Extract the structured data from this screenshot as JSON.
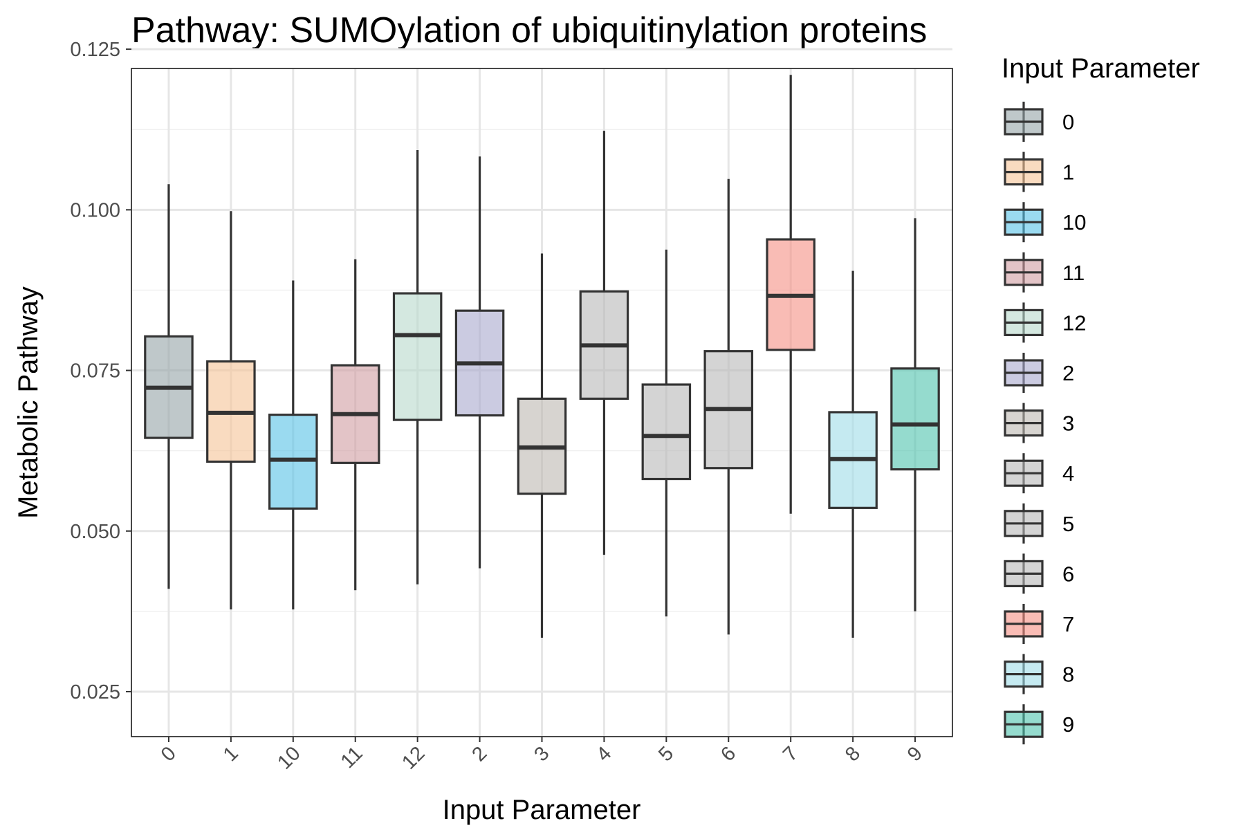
{
  "chart_data": {
    "type": "boxplot",
    "title": "Pathway: SUMOylation of ubiquitinylation proteins",
    "xlabel": "Input Parameter",
    "ylabel": "Metabolic Pathway",
    "ylim": [
      0.018,
      0.122
    ],
    "yticks": [
      0.025,
      0.05,
      0.075,
      0.1,
      0.125
    ],
    "ytick_labels": [
      "0.025",
      "0.050",
      "0.075",
      "0.100",
      "0.125"
    ],
    "grid": true,
    "legend": {
      "title": "Input Parameter",
      "placement": "right"
    },
    "categories": [
      "0",
      "1",
      "10",
      "11",
      "12",
      "2",
      "3",
      "4",
      "5",
      "6",
      "7",
      "8",
      "9"
    ],
    "boxes": [
      {
        "label": "0",
        "whisker_low": 0.041,
        "q1": 0.0645,
        "median": 0.0723,
        "q3": 0.0803,
        "whisker_high": 0.104,
        "color": "#95A3A6"
      },
      {
        "label": "1",
        "whisker_low": 0.0378,
        "q1": 0.0608,
        "median": 0.0684,
        "q3": 0.0764,
        "whisker_high": 0.0998,
        "color": "#F5C396"
      },
      {
        "label": "10",
        "whisker_low": 0.0378,
        "q1": 0.0535,
        "median": 0.0611,
        "q3": 0.0681,
        "whisker_high": 0.089,
        "color": "#56C2E6"
      },
      {
        "label": "11",
        "whisker_low": 0.0408,
        "q1": 0.0606,
        "median": 0.0682,
        "q3": 0.0758,
        "whisker_high": 0.0923,
        "color": "#D19DA2"
      },
      {
        "label": "12",
        "whisker_low": 0.0417,
        "q1": 0.0673,
        "median": 0.0805,
        "q3": 0.087,
        "whisker_high": 0.1093,
        "color": "#B8D8CC"
      },
      {
        "label": "2",
        "whisker_low": 0.0442,
        "q1": 0.068,
        "median": 0.0761,
        "q3": 0.0843,
        "whisker_high": 0.1083,
        "color": "#A9A8CD"
      },
      {
        "label": "3",
        "whisker_low": 0.0334,
        "q1": 0.0558,
        "median": 0.063,
        "q3": 0.0706,
        "whisker_high": 0.0932,
        "color": "#BCB8B0"
      },
      {
        "label": "4",
        "whisker_low": 0.0463,
        "q1": 0.0706,
        "median": 0.0789,
        "q3": 0.0873,
        "whisker_high": 0.1123,
        "color": "#B8B8B8"
      },
      {
        "label": "5",
        "whisker_low": 0.0367,
        "q1": 0.0581,
        "median": 0.0648,
        "q3": 0.0728,
        "whisker_high": 0.0938,
        "color": "#B8B8B8"
      },
      {
        "label": "6",
        "whisker_low": 0.0339,
        "q1": 0.0598,
        "median": 0.069,
        "q3": 0.078,
        "whisker_high": 0.1048,
        "color": "#B8B8B8"
      },
      {
        "label": "7",
        "whisker_low": 0.0527,
        "q1": 0.0782,
        "median": 0.0866,
        "q3": 0.0954,
        "whisker_high": 0.121,
        "color": "#F58F84"
      },
      {
        "label": "8",
        "whisker_low": 0.0334,
        "q1": 0.0536,
        "median": 0.0612,
        "q3": 0.0685,
        "whisker_high": 0.0905,
        "color": "#9FDCE8"
      },
      {
        "label": "9",
        "whisker_low": 0.0375,
        "q1": 0.0596,
        "median": 0.0666,
        "q3": 0.0753,
        "whisker_high": 0.0987,
        "color": "#4FC3AE"
      }
    ]
  }
}
